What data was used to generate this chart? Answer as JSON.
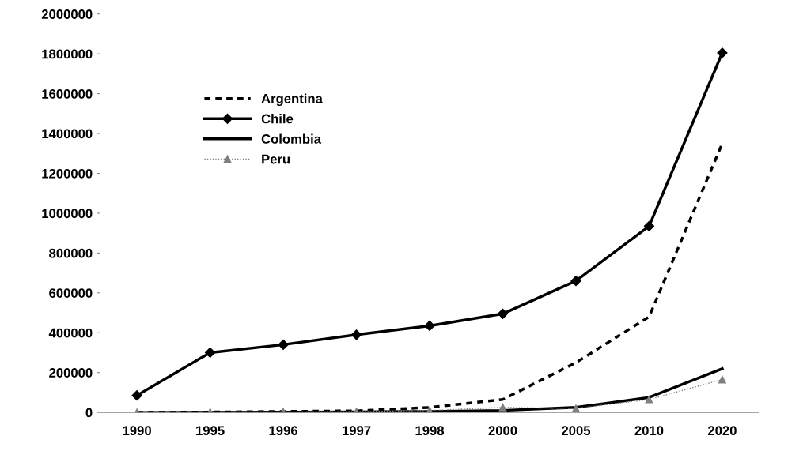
{
  "chart_data": {
    "type": "line",
    "categories": [
      "1990",
      "1995",
      "1996",
      "1997",
      "1998",
      "2000",
      "2005",
      "2010",
      "2020"
    ],
    "series": [
      {
        "name": "Argentina",
        "color": "#000000",
        "line_style": "dashed",
        "marker": "none",
        "values": [
          0,
          2000,
          5000,
          8000,
          25000,
          65000,
          250000,
          480000,
          1350000
        ]
      },
      {
        "name": "Chile",
        "color": "#000000",
        "line_style": "solid",
        "marker": "diamond",
        "values": [
          85000,
          300000,
          340000,
          390000,
          435000,
          495000,
          660000,
          935000,
          1805000
        ]
      },
      {
        "name": "Colombia",
        "color": "#000000",
        "line_style": "solid",
        "marker": "none",
        "values": [
          0,
          1000,
          2000,
          3000,
          5000,
          10000,
          25000,
          75000,
          220000
        ]
      },
      {
        "name": "Peru",
        "color": "#808080",
        "line_style": "dotted",
        "marker": "triangle",
        "values": [
          0,
          2000,
          3000,
          4000,
          10000,
          25000,
          20000,
          65000,
          165000
        ]
      }
    ],
    "ylim": [
      0,
      2000000
    ],
    "yticks": [
      0,
      200000,
      400000,
      600000,
      800000,
      1000000,
      1200000,
      1400000,
      1600000,
      1800000,
      2000000
    ],
    "grid": false,
    "legend": "top left"
  }
}
